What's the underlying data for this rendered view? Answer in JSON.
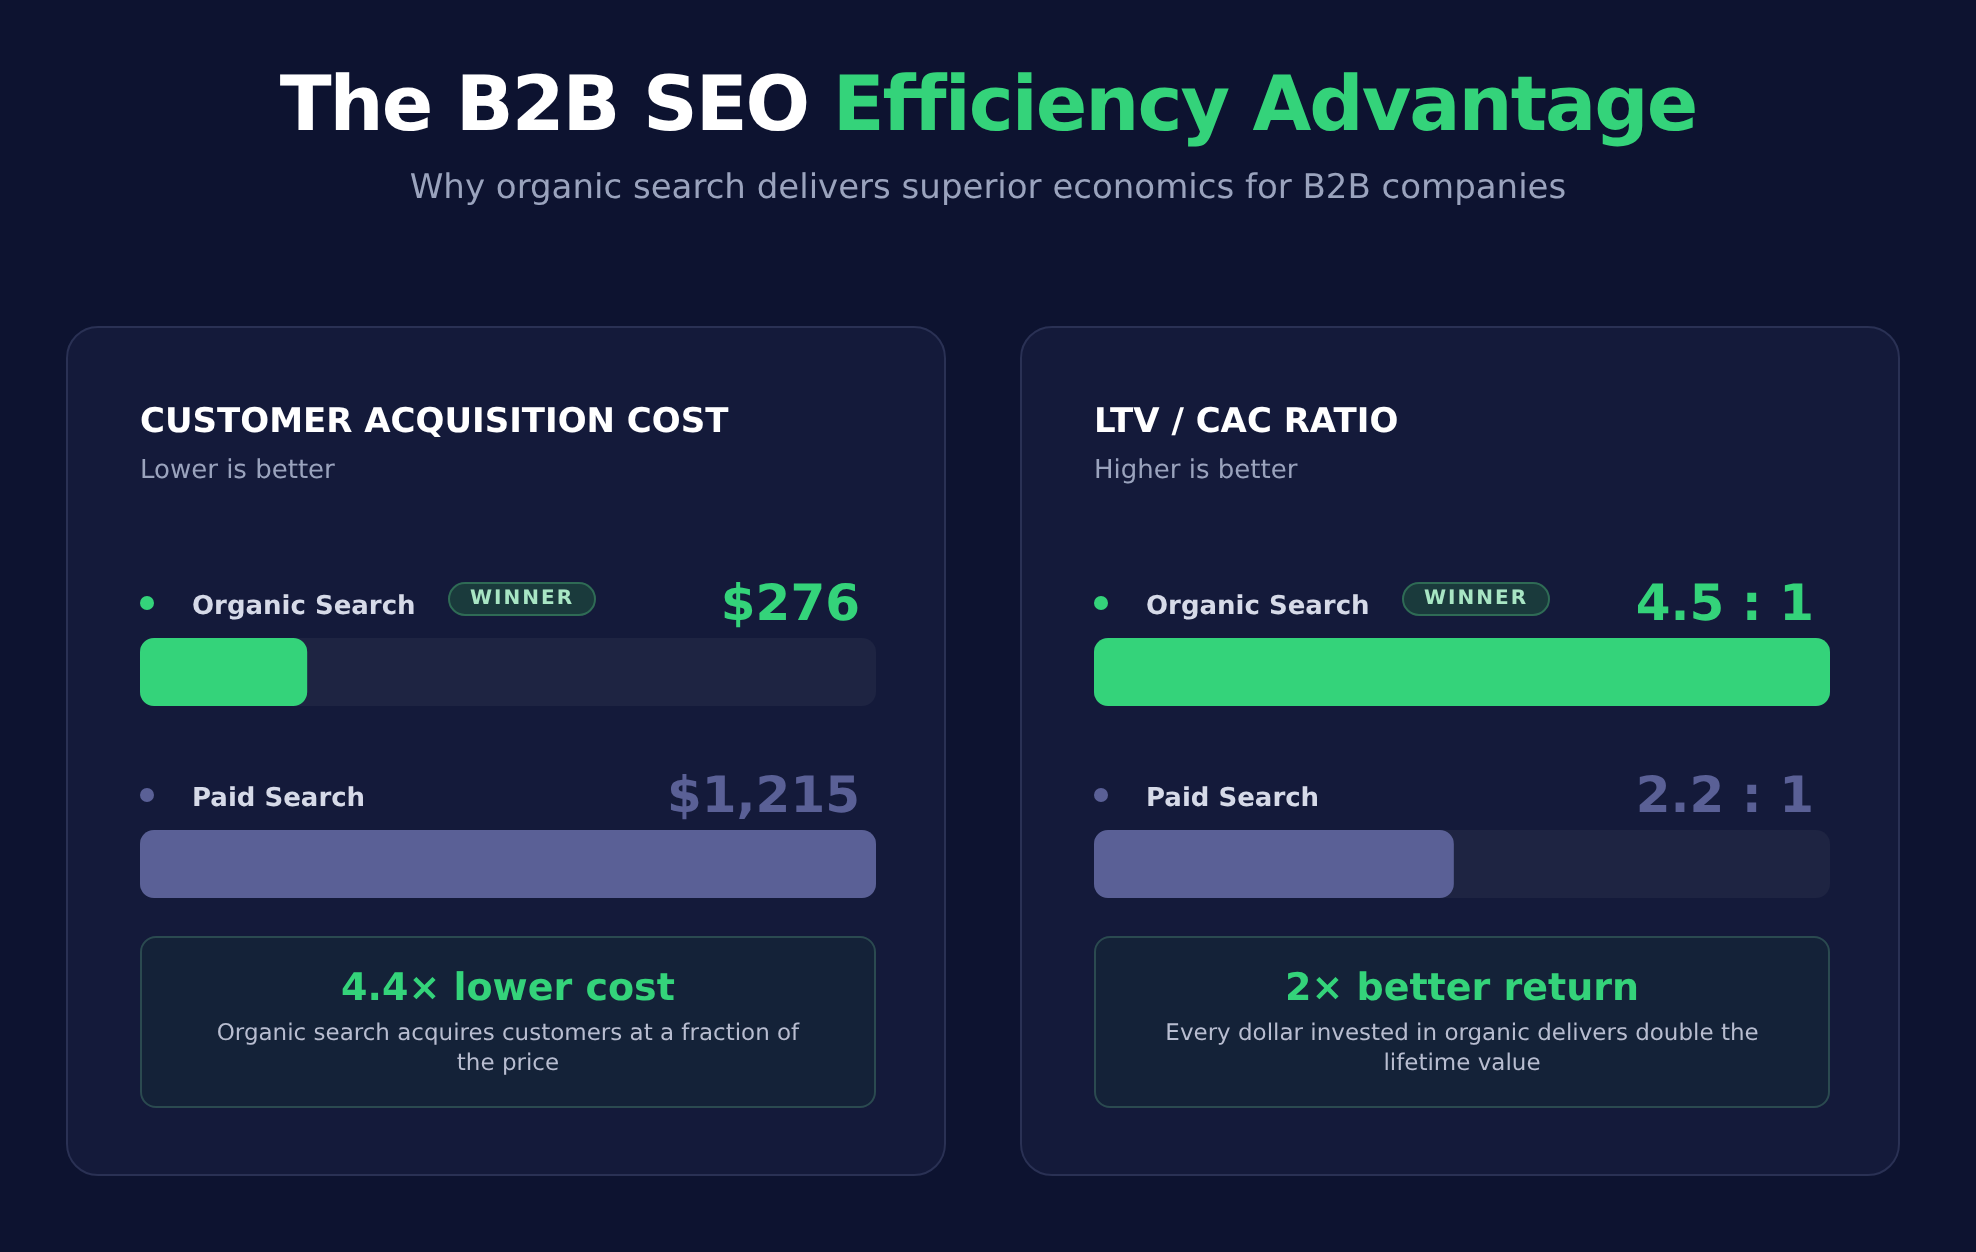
{
  "chart_data": [
    {
      "type": "other",
      "title": "The B2B SEO Efficiency Advantage",
      "subtitle": "Why organic search delivers superior economics for B2B companies"
    },
    {
      "type": "bar",
      "orientation": "horizontal",
      "title": "CUSTOMER ACQUISITION COST",
      "subtitle": "Lower is better",
      "categories": [
        "Organic Search",
        "Paid Search"
      ],
      "values": [
        276,
        1215
      ],
      "value_labels": [
        "$276",
        "$1,215"
      ],
      "colors": [
        "#34d37a",
        "#5a6096"
      ],
      "annotations": [
        "WINNER",
        "4.4× lower cost",
        "Organic search acquires customers at a fraction of the price"
      ]
    },
    {
      "type": "bar",
      "orientation": "horizontal",
      "title": "LTV / CAC RATIO",
      "subtitle": "Higher is better",
      "categories": [
        "Organic Search",
        "Paid Search"
      ],
      "values": [
        4.5,
        2.2
      ],
      "value_labels": [
        "4.5 : 1",
        "2.2 : 1"
      ],
      "colors": [
        "#34d37a",
        "#5a6096"
      ],
      "annotations": [
        "WINNER",
        "2× better return",
        "Every dollar invested in organic delivers double the lifetime value"
      ]
    }
  ]
}
